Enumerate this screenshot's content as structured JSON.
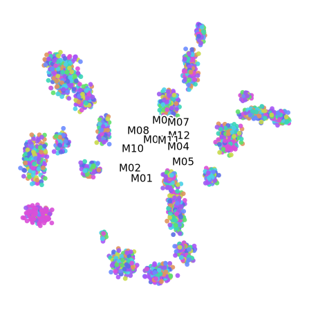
{
  "chart_data": {
    "type": "scatter",
    "title": "",
    "xlabel": "",
    "ylabel": "",
    "axes_visible": false,
    "grid": false,
    "legend": "none",
    "palette": [
      "#5b6ee6",
      "#a855f7",
      "#d94fd8",
      "#4ad0e8",
      "#5ee06a",
      "#c8d94a",
      "#e0935e",
      "#6c8cff",
      "#3bd6b6",
      "#9c5cf0"
    ],
    "cluster_labels": [
      {
        "label": "M09",
        "x": 236,
        "y": 174
      },
      {
        "label": "M07",
        "x": 258,
        "y": 177
      },
      {
        "label": "M08",
        "x": 200,
        "y": 189
      },
      {
        "label": "M12",
        "x": 259,
        "y": 196
      },
      {
        "label": "M06",
        "x": 223,
        "y": 202
      },
      {
        "label": "M11",
        "x": 244,
        "y": 203
      },
      {
        "label": "M04",
        "x": 258,
        "y": 212
      },
      {
        "label": "M10",
        "x": 192,
        "y": 215
      },
      {
        "label": "M05",
        "x": 265,
        "y": 234
      },
      {
        "label": "M02",
        "x": 188,
        "y": 243
      },
      {
        "label": "M01",
        "x": 205,
        "y": 258
      }
    ]
  }
}
